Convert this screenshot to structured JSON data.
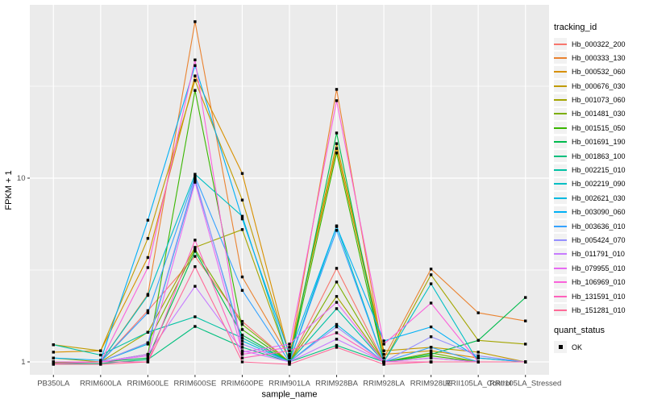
{
  "figure": {
    "background": "#FFFFFF",
    "panel_background": "#EBEBEB",
    "gridline_color": "#FFFFFF",
    "tick_color": "#333333",
    "tick_label_color": "#4D4D4D",
    "axis_title_color": "#000000"
  },
  "chart_data": {
    "type": "line",
    "title": "",
    "xlabel": "sample_name",
    "ylabel": "FPKM + 1",
    "y_scale": "log10",
    "y_ticks": [
      1,
      10
    ],
    "y_tick_labels": [
      "1",
      "10"
    ],
    "y_minor_breaks": [
      3.1623,
      31.623
    ],
    "ylim": [
      0.85,
      88
    ],
    "grid": true,
    "legend_position": "right",
    "point_marker": "filled-black-square",
    "categories": [
      "PB350LA",
      "RRIM600LA",
      "RRIM600LE",
      "RRIM600SE",
      "RRIM600PE",
      "RRIM901LA",
      "RRIM928BA",
      "RRIM928LA",
      "RRIM928LE",
      "RRII105LA_Control",
      "RRII105LA_Stressed"
    ],
    "series": [
      {
        "name": "Hb_000322_200",
        "color": "#F8766D",
        "values": [
          1.0,
          1.0,
          1.9,
          3.75,
          1.66,
          1.0,
          3.23,
          1.0,
          1.05,
          1.0,
          1.0
        ]
      },
      {
        "name": "Hb_000333_130",
        "color": "#EA8331",
        "values": [
          1.0,
          1.0,
          2.33,
          71.0,
          2.9,
          1.05,
          30.4,
          1.05,
          3.2,
          1.85,
          1.67
        ]
      },
      {
        "name": "Hb_000532_060",
        "color": "#D89000",
        "values": [
          1.13,
          1.15,
          3.7,
          36.0,
          10.6,
          1.08,
          14.5,
          1.1,
          1.15,
          1.05,
          1.0
        ]
      },
      {
        "name": "Hb_000676_030",
        "color": "#C09B00",
        "values": [
          1.24,
          1.15,
          4.7,
          34.0,
          7.6,
          1.08,
          15.4,
          1.15,
          1.2,
          1.13,
          1.0
        ]
      },
      {
        "name": "Hb_001073_060",
        "color": "#A3A500",
        "values": [
          1.05,
          1.0,
          1.45,
          4.2,
          5.25,
          1.0,
          2.27,
          1.0,
          2.98,
          1.31,
          1.25
        ]
      },
      {
        "name": "Hb_001481_030",
        "color": "#7CAE00",
        "values": [
          1.0,
          1.0,
          1.27,
          4.1,
          1.6,
          1.0,
          2.72,
          1.0,
          1.12,
          1.0,
          1.0
        ]
      },
      {
        "name": "Hb_001515_050",
        "color": "#39B600",
        "values": [
          0.99,
          1.0,
          1.1,
          30.0,
          1.5,
          1.0,
          13.7,
          1.0,
          1.08,
          1.0,
          1.0
        ]
      },
      {
        "name": "Hb_001691_190",
        "color": "#00BB4E",
        "values": [
          1.0,
          1.0,
          1.05,
          4.0,
          1.4,
          1.0,
          17.6,
          1.0,
          1.1,
          1.31,
          2.24
        ]
      },
      {
        "name": "Hb_001863_100",
        "color": "#00BF7D",
        "values": [
          0.98,
          0.98,
          1.03,
          1.56,
          1.2,
          1.0,
          1.23,
          1.0,
          1.0,
          1.0,
          1.0
        ]
      },
      {
        "name": "Hb_002215_010",
        "color": "#00C1A3",
        "values": [
          1.24,
          1.09,
          1.45,
          1.76,
          1.35,
          1.0,
          1.95,
          1.0,
          1.0,
          1.0,
          1.0
        ]
      },
      {
        "name": "Hb_002219_090",
        "color": "#00BFC4",
        "values": [
          1.0,
          1.0,
          2.3,
          10.5,
          6.2,
          1.0,
          5.5,
          1.0,
          2.66,
          1.0,
          1.0
        ]
      },
      {
        "name": "Hb_002621_030",
        "color": "#00BAE0",
        "values": [
          1.0,
          1.0,
          1.25,
          9.8,
          1.3,
          1.0,
          1.6,
          1.0,
          1.0,
          1.0,
          1.0
        ]
      },
      {
        "name": "Hb_003090_060",
        "color": "#00B0F6",
        "values": [
          1.05,
          1.02,
          5.9,
          41.0,
          6.0,
          1.1,
          5.45,
          1.3,
          1.55,
          1.05,
          1.0
        ]
      },
      {
        "name": "Hb_003636_010",
        "color": "#35A2FF",
        "values": [
          1.0,
          1.0,
          1.85,
          10.2,
          2.45,
          1.0,
          5.2,
          1.0,
          1.2,
          1.0,
          1.0
        ]
      },
      {
        "name": "Hb_005424_070",
        "color": "#9590FF",
        "values": [
          1.0,
          1.0,
          1.27,
          10.0,
          1.25,
          1.0,
          1.55,
          1.0,
          1.37,
          1.08,
          1.0
        ]
      },
      {
        "name": "Hb_011791_010",
        "color": "#C77CFF",
        "values": [
          1.0,
          1.0,
          1.1,
          2.58,
          1.15,
          1.0,
          1.33,
          1.0,
          1.05,
          1.0,
          1.0
        ]
      },
      {
        "name": "Hb_079955_010",
        "color": "#E76BF3",
        "values": [
          1.0,
          1.0,
          1.08,
          9.5,
          1.13,
          1.25,
          2.11,
          1.0,
          1.0,
          1.0,
          1.0
        ]
      },
      {
        "name": "Hb_106969_010",
        "color": "#FA62DB",
        "values": [
          1.0,
          1.0,
          3.26,
          44.0,
          1.1,
          1.2,
          26.4,
          1.25,
          2.09,
          1.0,
          1.0
        ]
      },
      {
        "name": "Hb_131591_010",
        "color": "#FF62BC",
        "values": [
          0.98,
          1.0,
          1.0,
          4.6,
          1.05,
          1.15,
          1.44,
          1.0,
          1.0,
          1.0,
          1.0
        ]
      },
      {
        "name": "Hb_151281_010",
        "color": "#FF6A98",
        "values": [
          0.97,
          0.97,
          1.0,
          3.3,
          1.0,
          0.97,
          1.2,
          0.97,
          1.0,
          1.0,
          1.0
        ]
      }
    ],
    "legend": {
      "tracking_title": "tracking_id",
      "quant_title": "quant_status",
      "quant_items": [
        {
          "label": "OK",
          "marker": "black-square"
        }
      ],
      "key_fill": "#F2F2F2",
      "marker_color": "#000000"
    }
  }
}
